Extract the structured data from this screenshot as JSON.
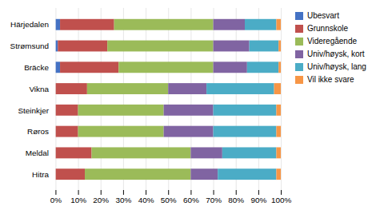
{
  "chart_data": {
    "type": "bar",
    "orientation": "horizontal",
    "stacked": true,
    "categories": [
      "Härjedalen",
      "Strømsund",
      "Bräcke",
      "Vikna",
      "Steinkjer",
      "Røros",
      "Meldal",
      "Hitra"
    ],
    "series": [
      {
        "name": "Ubesvart",
        "color": "#4472c4",
        "values": [
          0.02,
          0.01,
          0.02,
          0.0,
          0.0,
          0.0,
          0.0,
          0.0
        ]
      },
      {
        "name": "Grunnskole",
        "color": "#c0504d",
        "values": [
          0.24,
          0.22,
          0.26,
          0.14,
          0.1,
          0.1,
          0.16,
          0.13
        ]
      },
      {
        "name": "Videregående",
        "color": "#9bbb59",
        "values": [
          0.44,
          0.47,
          0.42,
          0.36,
          0.38,
          0.38,
          0.44,
          0.47
        ]
      },
      {
        "name": "Univ/høysk, kort",
        "color": "#8064a2",
        "values": [
          0.14,
          0.16,
          0.15,
          0.17,
          0.22,
          0.22,
          0.14,
          0.12
        ]
      },
      {
        "name": "Univ/høysk, lang",
        "color": "#4bacc6",
        "values": [
          0.14,
          0.13,
          0.14,
          0.3,
          0.28,
          0.28,
          0.24,
          0.26
        ]
      },
      {
        "name": "Vil ikke svare",
        "color": "#f79646",
        "values": [
          0.02,
          0.01,
          0.01,
          0.03,
          0.02,
          0.02,
          0.02,
          0.02
        ]
      }
    ],
    "xlim": [
      0,
      1.0
    ],
    "xticks": [
      {
        "value": 0,
        "label": "0%"
      },
      {
        "value": 0.1,
        "label": "10%"
      },
      {
        "value": 0.2,
        "label": "20%"
      },
      {
        "value": 0.3,
        "label": "30%"
      },
      {
        "value": 0.4,
        "label": "40%"
      },
      {
        "value": 0.5,
        "label": "50%"
      },
      {
        "value": 0.6,
        "label": "60%"
      },
      {
        "value": 0.7,
        "label": "70%"
      },
      {
        "value": 0.8,
        "label": "80%"
      },
      {
        "value": 0.9,
        "label": "90%"
      },
      {
        "value": 1.0,
        "label": "100%"
      }
    ],
    "grid": true,
    "legend": "right"
  }
}
